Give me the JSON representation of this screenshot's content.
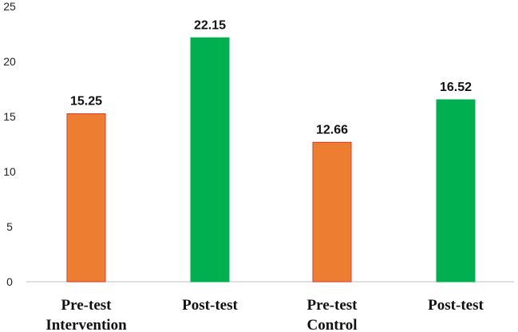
{
  "chart_data": {
    "type": "bar",
    "categories": [
      [
        "Pre-test",
        "Intervention"
      ],
      [
        "Post-test"
      ],
      [
        "Pre-test",
        "Control"
      ],
      [
        "Post-test"
      ]
    ],
    "values": [
      15.25,
      22.15,
      12.66,
      16.52
    ],
    "value_labels": [
      "15.25",
      "22.15",
      "12.66",
      "16.52"
    ],
    "bar_colors": [
      "#ED7D31",
      "#00B050",
      "#ED7D31",
      "#00B050"
    ],
    "bar_edge_color": "#D63A2A",
    "ylim": [
      0,
      25
    ],
    "yticks": [
      0,
      5,
      10,
      15,
      20,
      25
    ],
    "grid": false,
    "title": "",
    "xlabel": "",
    "ylabel": ""
  }
}
